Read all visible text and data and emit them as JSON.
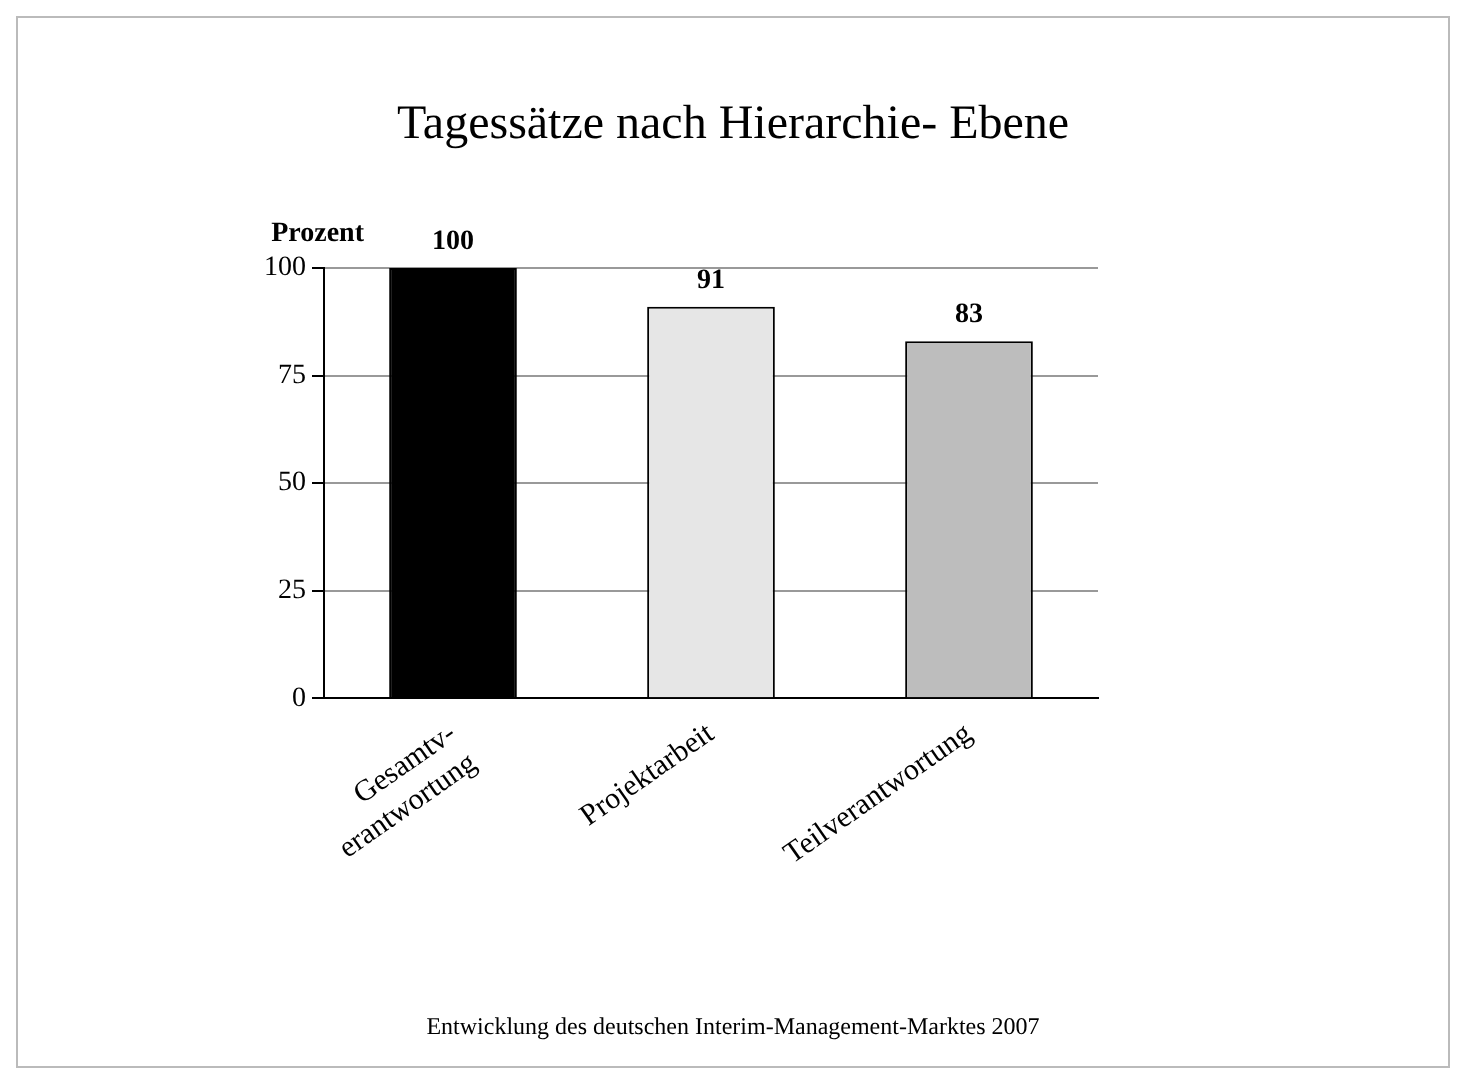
{
  "chart_data": {
    "type": "bar",
    "title": "Tagessätze nach Hierarchie- Ebene",
    "ylabel": "Prozent",
    "categories": [
      "Gesamtv-\nerantwortung",
      "Projektarbeit",
      "Teilverantwortung"
    ],
    "values": [
      100,
      91,
      83
    ],
    "colors": [
      "#000000",
      "#e6e6e6",
      "#bdbdbd"
    ],
    "ylim": [
      0,
      100
    ],
    "yticks": [
      0,
      25,
      50,
      75,
      100
    ],
    "grid": "y",
    "data_labels": true,
    "legend": false,
    "annotations": [
      "Entwicklung des deutschen Interim-Management-Marktes 2007"
    ]
  }
}
